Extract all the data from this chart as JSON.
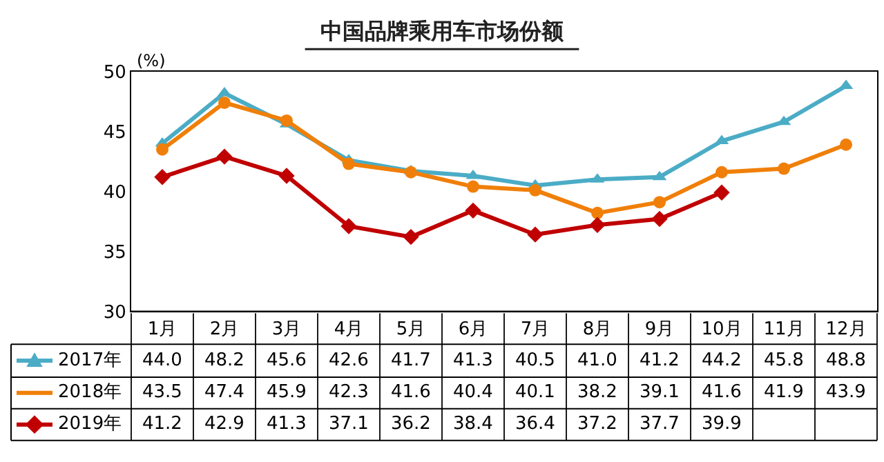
{
  "chart_data": {
    "type": "line",
    "title": "中国品牌乘用车市场份额",
    "ylabel": "(%)",
    "categories": [
      "1月",
      "2月",
      "3月",
      "4月",
      "5月",
      "6月",
      "7月",
      "8月",
      "9月",
      "10月",
      "11月",
      "12月"
    ],
    "series": [
      {
        "name": "2017年",
        "color": "#4bacc6",
        "marker": "triangle",
        "values": [
          44.0,
          48.2,
          45.6,
          42.6,
          41.7,
          41.3,
          40.5,
          41.0,
          41.2,
          44.2,
          45.8,
          48.8
        ],
        "value_labels": [
          "44.0",
          "48.2",
          "45.6",
          "42.6",
          "41.7",
          "41.3",
          "40.5",
          "41.0",
          "41.2",
          "44.2",
          "45.8",
          "48.8"
        ]
      },
      {
        "name": "2018年",
        "color": "#f07f09",
        "marker": "circle",
        "values": [
          43.5,
          47.4,
          45.9,
          42.3,
          41.6,
          40.4,
          40.1,
          38.2,
          39.1,
          41.6,
          41.9,
          43.9
        ],
        "value_labels": [
          "43.5",
          "47.4",
          "45.9",
          "42.3",
          "41.6",
          "40.4",
          "40.1",
          "38.2",
          "39.1",
          "41.6",
          "41.9",
          "43.9"
        ]
      },
      {
        "name": "2019年",
        "color": "#c00000",
        "marker": "diamond",
        "values": [
          41.2,
          42.9,
          41.3,
          37.1,
          36.2,
          38.4,
          36.4,
          37.2,
          37.7,
          39.9,
          null,
          null
        ],
        "value_labels": [
          "41.2",
          "42.9",
          "41.3",
          "37.1",
          "36.2",
          "38.4",
          "36.4",
          "37.2",
          "37.7",
          "39.9",
          null,
          null
        ]
      }
    ],
    "ylim": [
      30,
      50
    ],
    "yticks": [
      30,
      35,
      40,
      45,
      50
    ],
    "grid": false,
    "legend": "bottom left",
    "line_style": "solid"
  }
}
